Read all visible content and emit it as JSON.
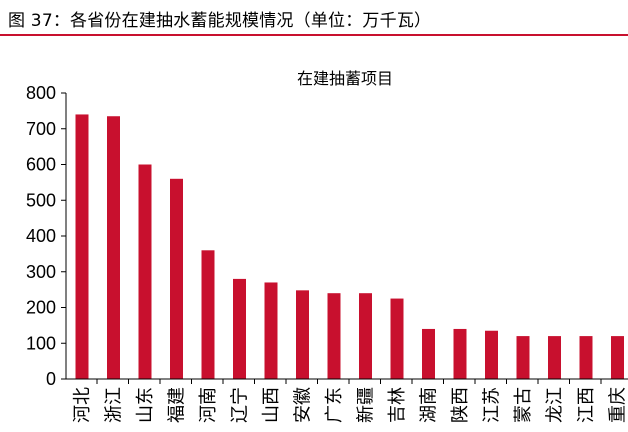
{
  "header": {
    "title": "图 37：各省份在建抽水蓄能规模情况（单位：万千瓦）"
  },
  "chart_data": {
    "type": "bar",
    "title": "在建抽蓄项目",
    "xlabel": "",
    "ylabel": "",
    "ylim": [
      0,
      800
    ],
    "yticks": [
      0,
      100,
      200,
      300,
      400,
      500,
      600,
      700,
      800
    ],
    "grid": false,
    "categories": [
      "河北",
      "浙江",
      "山东",
      "福建",
      "河南",
      "辽宁",
      "山西",
      "安徽",
      "广东",
      "新疆",
      "吉林",
      "湖南",
      "陕西",
      "江苏",
      "蒙古",
      "龙江",
      "江西",
      "重庆"
    ],
    "values": [
      740,
      735,
      600,
      560,
      360,
      280,
      270,
      248,
      240,
      240,
      225,
      140,
      140,
      135,
      120,
      120,
      120,
      120
    ],
    "bar_color": "#c8102e"
  }
}
